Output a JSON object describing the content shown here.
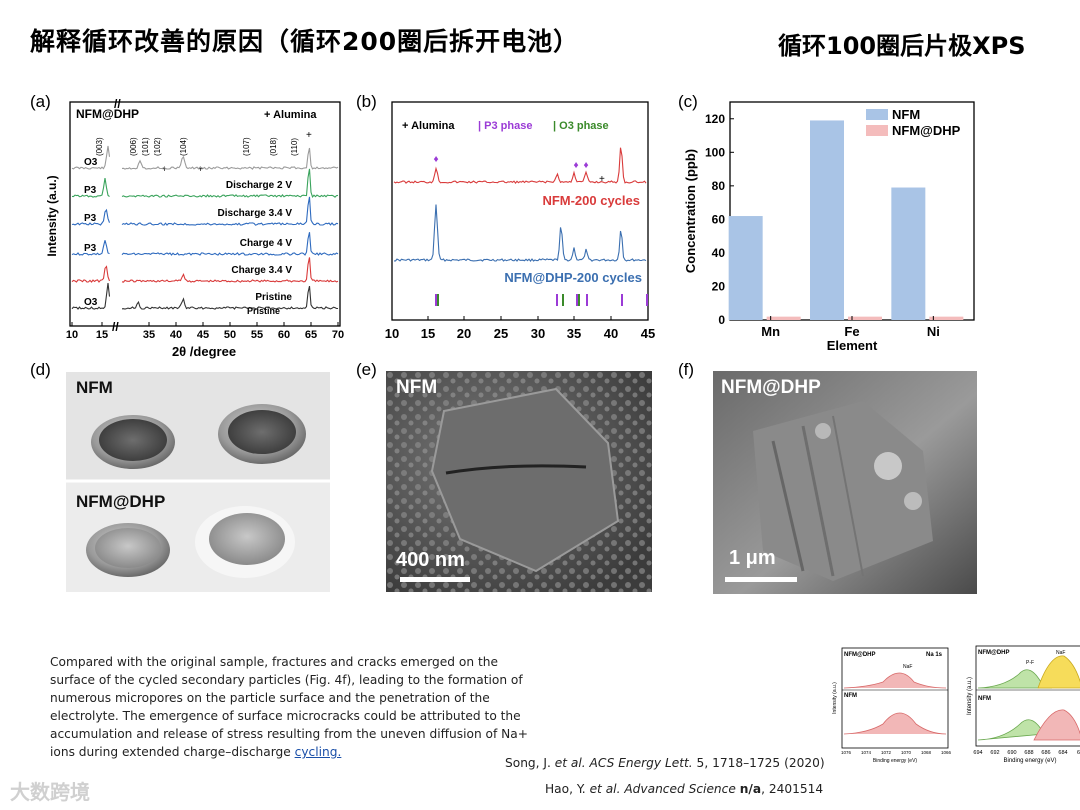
{
  "slide": {
    "title": "解释循环改善的原因（循环200圈后拆开电池）",
    "title_right": "循环100圈后片极XPS"
  },
  "panels": {
    "a": "(a)",
    "b": "(b)",
    "c": "(c)",
    "d": "(d)",
    "e": "(e)",
    "f": "(f)"
  },
  "panel_a": {
    "sample": "NFM@DHP",
    "alumina": "+ Alumina",
    "ylabel": "Intensity (a.u.)",
    "xlabel": "2θ /degree",
    "xticks": [
      "10",
      "15",
      "35",
      "40",
      "45",
      "50",
      "55",
      "60",
      "65",
      "70"
    ],
    "peak_labels": [
      "(003)",
      "(006)",
      "(101)",
      "(102)",
      "(104)",
      "(107)",
      "(018)",
      "(110)"
    ],
    "curves": [
      {
        "phase": "O3",
        "label": "",
        "color": "#9b9b9b"
      },
      {
        "phase": "P3",
        "label": "Discharge 2 V",
        "color": "#3aa35c"
      },
      {
        "phase": "P3",
        "label": "Discharge 3.4 V",
        "color": "#2f6bbf"
      },
      {
        "phase": "P3",
        "label": "Charge 4 V",
        "color": "#2f6bbf"
      },
      {
        "phase": "",
        "label": "Charge 3.4 V",
        "color": "#d93b3b"
      },
      {
        "phase": "O3",
        "label": "Pristine",
        "color": "#333333"
      }
    ],
    "pristine_label": "Pristine"
  },
  "panel_b": {
    "legend_alumina": "+ Alumina",
    "legend_p3": "| P3 phase",
    "legend_o3": "| O3 phase",
    "label_top": "NFM-200 cycles",
    "label_bottom": "NFM@DHP-200 cycles",
    "xticks": [
      "10",
      "15",
      "20",
      "25",
      "30",
      "35",
      "40",
      "45"
    ],
    "colors": {
      "top": "#d93b3b",
      "bottom": "#3b6fb0",
      "p3": "#9b3bd6",
      "o3": "#3a8a2a"
    }
  },
  "chart_data": {
    "type": "bar",
    "categories": [
      "Mn",
      "Fe",
      "Ni"
    ],
    "series": [
      {
        "name": "NFM",
        "values": [
          62,
          119,
          79
        ],
        "color": "#a9c4e6"
      },
      {
        "name": "NFM@DHP",
        "values": [
          2,
          2,
          2
        ],
        "color": "#f4bcbc"
      }
    ],
    "xlabel": "Element",
    "ylabel": "Concentration (ppb)",
    "ylim": [
      0,
      130
    ],
    "yticks": [
      "0",
      "20",
      "40",
      "60",
      "80",
      "100",
      "120"
    ],
    "legend_position": "top-right"
  },
  "panel_d": {
    "label_top": "NFM",
    "label_bottom": "NFM@DHP"
  },
  "panel_e": {
    "label": "NFM",
    "scale": "400 nm"
  },
  "panel_f": {
    "label": "NFM@DHP",
    "scale": "1 μm"
  },
  "body": {
    "text": "Compared with the original sample, fractures and cracks emerged on the surface of the cycled secondary particles (Fig. 4f), leading to the formation of numerous micropores on the particle surface and the penetration of the electrolyte. The emergence of surface microcracks could be attributed to the accumulation and release of stress resulting from the uneven diffusion of Na+ ions during extended charge–discharge ",
    "link": "cycling."
  },
  "references": {
    "ref1": "Song, J. et al. ACS Energy Lett. 5, 1718–1725 (2020)",
    "ref2": "Hao, Y. et al. Advanced Science n/a, 2401514"
  },
  "xps": {
    "left": {
      "top_label": "NFM@DHP",
      "element": "Na 1s",
      "peak": "NaF",
      "bottom_label": "NFM",
      "xlabel": "Binding energy (eV)",
      "ylabel": "Intensity (a.u.)",
      "xticks": [
        "1076",
        "1074",
        "1072",
        "1070",
        "1068",
        "1066"
      ]
    },
    "right": {
      "top_label": "NFM@DHP",
      "peak1": "P-F",
      "peak2": "NaF",
      "bottom_label": "NFM",
      "xlabel": "Binding energy (eV)",
      "ylabel": "Intensity (a.u.)",
      "xticks": [
        "694",
        "692",
        "690",
        "688",
        "686",
        "684",
        "68"
      ]
    }
  },
  "watermark": "大数跨境"
}
